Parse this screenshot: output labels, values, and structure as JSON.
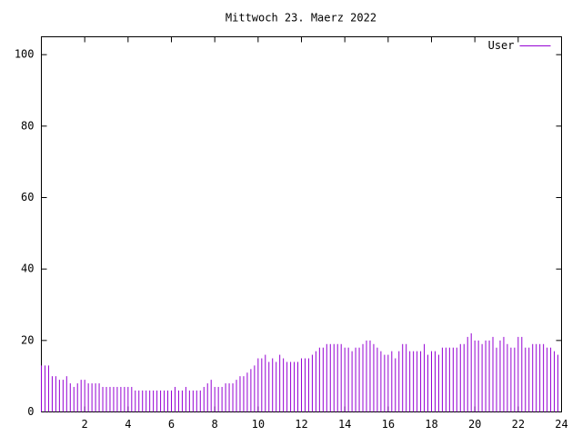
{
  "chart_data": {
    "type": "impulse",
    "title": "Mittwoch 23. Maerz 2022",
    "x": [
      0,
      0.1667,
      0.3333,
      0.5,
      0.6667,
      0.8333,
      1,
      1.1667,
      1.3333,
      1.5,
      1.6667,
      1.8333,
      2,
      2.1667,
      2.3333,
      2.5,
      2.6667,
      2.8333,
      3,
      3.1667,
      3.3333,
      3.5,
      3.6667,
      3.8333,
      4,
      4.1667,
      4.3333,
      4.5,
      4.6667,
      4.8333,
      5,
      5.1667,
      5.3333,
      5.5,
      5.6667,
      5.8333,
      6,
      6.1667,
      6.3333,
      6.5,
      6.6667,
      6.8333,
      7,
      7.1667,
      7.3333,
      7.5,
      7.6667,
      7.8333,
      8,
      8.1667,
      8.3333,
      8.5,
      8.6667,
      8.8333,
      9,
      9.1667,
      9.3333,
      9.5,
      9.6667,
      9.8333,
      10,
      10.1667,
      10.3333,
      10.5,
      10.6667,
      10.8333,
      11,
      11.1667,
      11.3333,
      11.5,
      11.6667,
      11.8333,
      12,
      12.1667,
      12.3333,
      12.5,
      12.6667,
      12.8333,
      13,
      13.1667,
      13.3333,
      13.5,
      13.6667,
      13.8333,
      14,
      14.1667,
      14.3333,
      14.5,
      14.6667,
      14.8333,
      15,
      15.1667,
      15.3333,
      15.5,
      15.6667,
      15.8333,
      16,
      16.1667,
      16.3333,
      16.5,
      16.6667,
      16.8333,
      17,
      17.1667,
      17.3333,
      17.5,
      17.6667,
      17.8333,
      18,
      18.1667,
      18.3333,
      18.5,
      18.6667,
      18.8333,
      19,
      19.1667,
      19.3333,
      19.5,
      19.6667,
      19.8333,
      20,
      20.1667,
      20.3333,
      20.5,
      20.6667,
      20.8333,
      21,
      21.1667,
      21.3333,
      21.5,
      21.6667,
      21.8333,
      22,
      22.1667,
      22.3333,
      22.5,
      22.6667,
      22.8333,
      23,
      23.1667,
      23.3333,
      23.5,
      23.6667,
      23.8333
    ],
    "series": [
      {
        "name": "User",
        "color": "#9400d3",
        "values": [
          13,
          13,
          13,
          10,
          10,
          9,
          9,
          10,
          8,
          7,
          8,
          9,
          9,
          8,
          8,
          8,
          8,
          7,
          7,
          7,
          7,
          7,
          7,
          7,
          7,
          7,
          6,
          6,
          6,
          6,
          6,
          6,
          6,
          6,
          6,
          6,
          6,
          7,
          6,
          6,
          7,
          6,
          6,
          6,
          6,
          7,
          8,
          9,
          7,
          7,
          7,
          8,
          8,
          8,
          9,
          10,
          10,
          11,
          12,
          13,
          15,
          15,
          16,
          14,
          15,
          14,
          16,
          15,
          14,
          14,
          14,
          14,
          15,
          15,
          15,
          16,
          17,
          18,
          18,
          19,
          19,
          19,
          19,
          19,
          18,
          18,
          17,
          18,
          18,
          19,
          20,
          20,
          19,
          18,
          17,
          16,
          16,
          17,
          15,
          17,
          19,
          19,
          17,
          17,
          17,
          17,
          19,
          16,
          17,
          17,
          16,
          18,
          18,
          18,
          18,
          18,
          19,
          19,
          21,
          22,
          20,
          20,
          19,
          20,
          20,
          21,
          18,
          20,
          21,
          19,
          18,
          18,
          21,
          21,
          18,
          18,
          19,
          19,
          19,
          19,
          18,
          18,
          17,
          16
        ]
      }
    ],
    "xlim": [
      0,
      24
    ],
    "xticks": [
      2,
      4,
      6,
      8,
      10,
      12,
      14,
      16,
      18,
      20,
      22,
      24
    ],
    "ylim": [
      0,
      105
    ],
    "yticks": [
      0,
      20,
      40,
      60,
      80,
      100
    ],
    "legend": "top-right"
  }
}
